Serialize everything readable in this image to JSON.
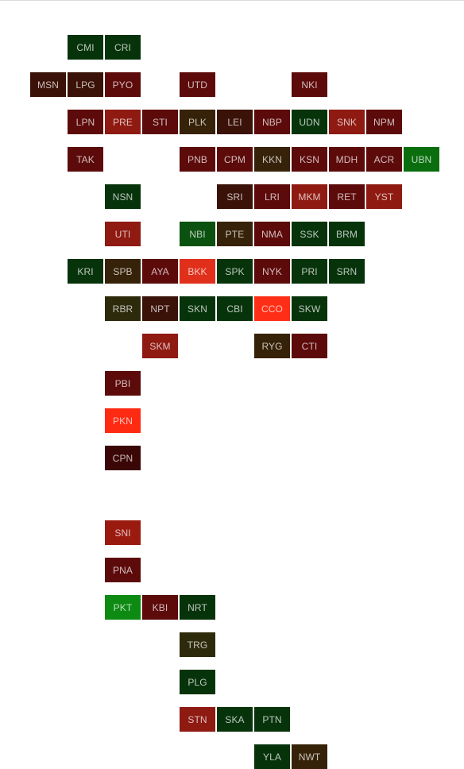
{
  "tiles": [
    {
      "code": "CMI",
      "col": 1,
      "row": 0,
      "color": "#07330b"
    },
    {
      "code": "CRI",
      "col": 2,
      "row": 0,
      "color": "#07330b"
    },
    {
      "code": "MSN",
      "col": 0,
      "row": 1,
      "color": "#3b1208"
    },
    {
      "code": "LPG",
      "col": 1,
      "row": 1,
      "color": "#3b1208"
    },
    {
      "code": "PYO",
      "col": 2,
      "row": 1,
      "color": "#5c0a0a"
    },
    {
      "code": "UTD",
      "col": 4,
      "row": 1,
      "color": "#5c0a0a"
    },
    {
      "code": "NKI",
      "col": 7,
      "row": 1,
      "color": "#5c0a0a"
    },
    {
      "code": "LPN",
      "col": 1,
      "row": 2,
      "color": "#5c0a0a"
    },
    {
      "code": "PRE",
      "col": 2,
      "row": 2,
      "color": "#8e1a12"
    },
    {
      "code": "STI",
      "col": 3,
      "row": 2,
      "color": "#5c0a0a"
    },
    {
      "code": "PLK",
      "col": 4,
      "row": 2,
      "color": "#362208"
    },
    {
      "code": "LEI",
      "col": 5,
      "row": 2,
      "color": "#3b1208"
    },
    {
      "code": "NBP",
      "col": 6,
      "row": 2,
      "color": "#5c0a0a"
    },
    {
      "code": "UDN",
      "col": 7,
      "row": 2,
      "color": "#07330b"
    },
    {
      "code": "SNK",
      "col": 8,
      "row": 2,
      "color": "#8e1a12"
    },
    {
      "code": "NPM",
      "col": 9,
      "row": 2,
      "color": "#5c0a0a"
    },
    {
      "code": "TAK",
      "col": 1,
      "row": 3,
      "color": "#5c0a0a"
    },
    {
      "code": "PNB",
      "col": 4,
      "row": 3,
      "color": "#5c0a0a"
    },
    {
      "code": "CPM",
      "col": 5,
      "row": 3,
      "color": "#5c0a0a"
    },
    {
      "code": "KKN",
      "col": 6,
      "row": 3,
      "color": "#362208"
    },
    {
      "code": "KSN",
      "col": 7,
      "row": 3,
      "color": "#5c0a0a"
    },
    {
      "code": "MDH",
      "col": 8,
      "row": 3,
      "color": "#5c0a0a"
    },
    {
      "code": "ACR",
      "col": 9,
      "row": 3,
      "color": "#5c0a0a"
    },
    {
      "code": "UBN",
      "col": 10,
      "row": 3,
      "color": "#0a6e0f"
    },
    {
      "code": "NSN",
      "col": 2,
      "row": 4,
      "color": "#07330b"
    },
    {
      "code": "SRI",
      "col": 5,
      "row": 4,
      "color": "#3b1208"
    },
    {
      "code": "LRI",
      "col": 6,
      "row": 4,
      "color": "#5c0a0a"
    },
    {
      "code": "MKM",
      "col": 7,
      "row": 4,
      "color": "#8e1a12"
    },
    {
      "code": "RET",
      "col": 8,
      "row": 4,
      "color": "#5c0a0a"
    },
    {
      "code": "YST",
      "col": 9,
      "row": 4,
      "color": "#8e1a12"
    },
    {
      "code": "UTI",
      "col": 2,
      "row": 5,
      "color": "#8e1a12"
    },
    {
      "code": "NBI",
      "col": 4,
      "row": 5,
      "color": "#0b5210"
    },
    {
      "code": "PTE",
      "col": 5,
      "row": 5,
      "color": "#362208"
    },
    {
      "code": "NMA",
      "col": 6,
      "row": 5,
      "color": "#5c0a0a"
    },
    {
      "code": "SSK",
      "col": 7,
      "row": 5,
      "color": "#07330b"
    },
    {
      "code": "BRM",
      "col": 8,
      "row": 5,
      "color": "#07330b"
    },
    {
      "code": "KRI",
      "col": 1,
      "row": 6,
      "color": "#07330b"
    },
    {
      "code": "SPB",
      "col": 2,
      "row": 6,
      "color": "#362208"
    },
    {
      "code": "AYA",
      "col": 3,
      "row": 6,
      "color": "#5c0a0a"
    },
    {
      "code": "BKK",
      "col": 4,
      "row": 6,
      "color": "#e0301c"
    },
    {
      "code": "SPK",
      "col": 5,
      "row": 6,
      "color": "#07330b"
    },
    {
      "code": "NYK",
      "col": 6,
      "row": 6,
      "color": "#5c0a0a"
    },
    {
      "code": "PRI",
      "col": 7,
      "row": 6,
      "color": "#07330b"
    },
    {
      "code": "SRN",
      "col": 8,
      "row": 6,
      "color": "#07330b"
    },
    {
      "code": "RBR",
      "col": 2,
      "row": 7,
      "color": "#2c2a0a"
    },
    {
      "code": "NPT",
      "col": 3,
      "row": 7,
      "color": "#3b1208"
    },
    {
      "code": "SKN",
      "col": 4,
      "row": 7,
      "color": "#07330b"
    },
    {
      "code": "CBI",
      "col": 5,
      "row": 7,
      "color": "#07330b"
    },
    {
      "code": "CCO",
      "col": 6,
      "row": 7,
      "color": "#ff2e16"
    },
    {
      "code": "SKW",
      "col": 7,
      "row": 7,
      "color": "#07330b"
    },
    {
      "code": "SKM",
      "col": 3,
      "row": 8,
      "color": "#8e1a12"
    },
    {
      "code": "RYG",
      "col": 6,
      "row": 8,
      "color": "#362208"
    },
    {
      "code": "CTI",
      "col": 7,
      "row": 8,
      "color": "#5c0a0a"
    },
    {
      "code": "PBI",
      "col": 2,
      "row": 9,
      "color": "#5c0a0a"
    },
    {
      "code": "PKN",
      "col": 2,
      "row": 10,
      "color": "#ff2a12"
    },
    {
      "code": "CPN",
      "col": 2,
      "row": 11,
      "color": "#3b0606"
    },
    {
      "code": "SNI",
      "col": 2,
      "row": 13,
      "color": "#9a1a10"
    },
    {
      "code": "PNA",
      "col": 2,
      "row": 14,
      "color": "#5c0a0a"
    },
    {
      "code": "PKT",
      "col": 2,
      "row": 15,
      "color": "#0c8a12"
    },
    {
      "code": "KBI",
      "col": 3,
      "row": 15,
      "color": "#5c0a0a"
    },
    {
      "code": "NRT",
      "col": 4,
      "row": 15,
      "color": "#07330b"
    },
    {
      "code": "TRG",
      "col": 4,
      "row": 16,
      "color": "#2c2a0a"
    },
    {
      "code": "PLG",
      "col": 4,
      "row": 17,
      "color": "#07330b"
    },
    {
      "code": "STN",
      "col": 4,
      "row": 18,
      "color": "#8e1a12"
    },
    {
      "code": "SKA",
      "col": 5,
      "row": 18,
      "color": "#07330b"
    },
    {
      "code": "PTN",
      "col": 6,
      "row": 18,
      "color": "#07330b"
    },
    {
      "code": "YLA",
      "col": 6,
      "row": 19,
      "color": "#07330b"
    },
    {
      "code": "NWT",
      "col": 7,
      "row": 19,
      "color": "#362208"
    }
  ]
}
